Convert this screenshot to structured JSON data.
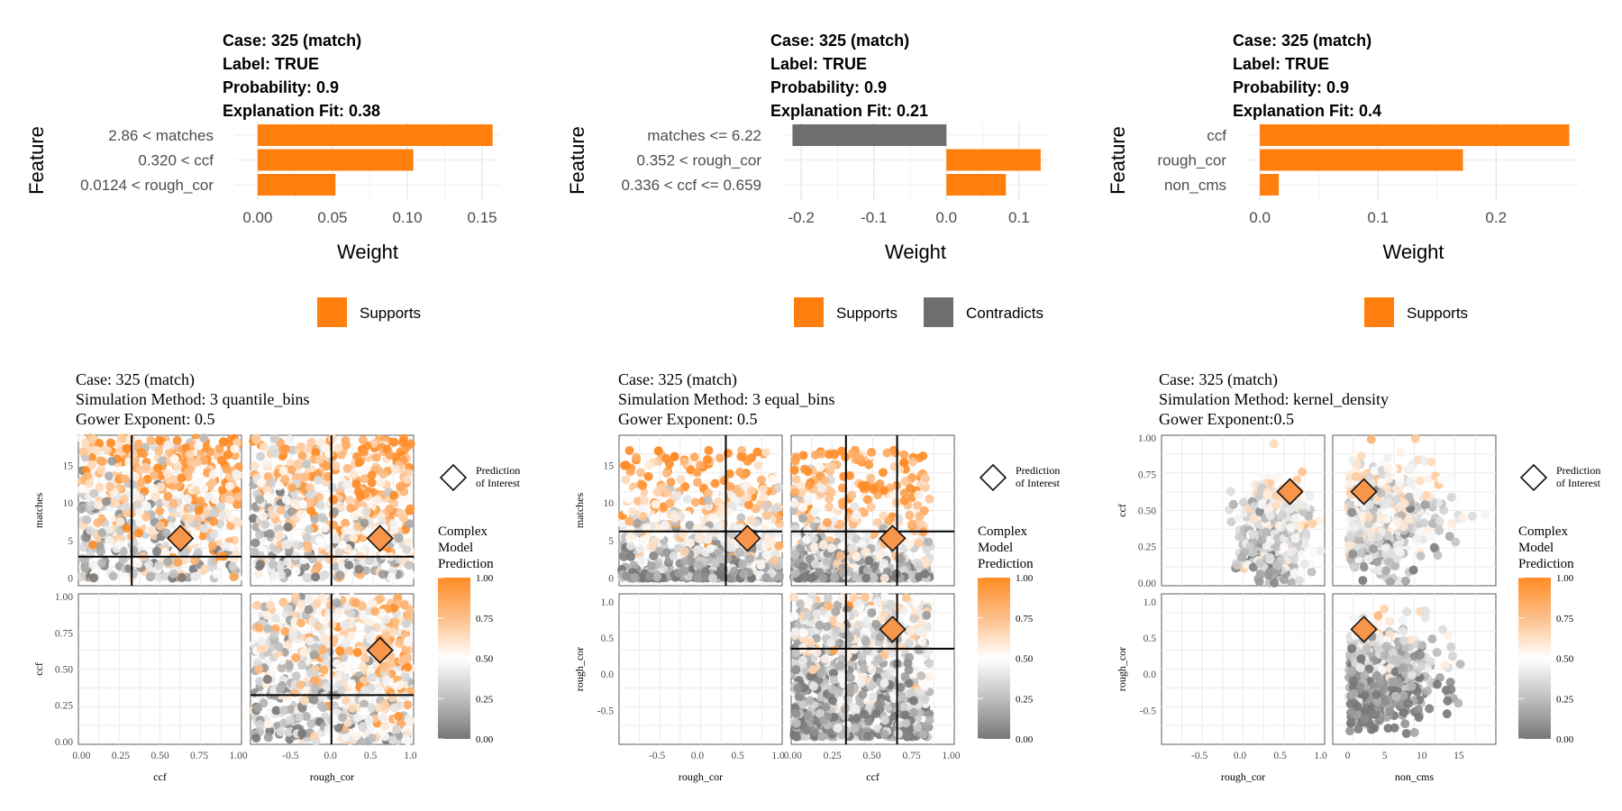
{
  "chart_data": [
    {
      "type": "bar",
      "title": [
        "Case: 325 (match)",
        "Label: TRUE",
        "Probability: 0.9",
        "Explanation Fit: 0.38"
      ],
      "xlabel": "Weight",
      "ylabel": "Feature",
      "xlim": [
        -0.015,
        0.162
      ],
      "xticks": [
        0.0,
        0.05,
        0.1,
        0.15
      ],
      "xtick_labels": [
        "0.00",
        "0.05",
        "0.10",
        "0.15"
      ],
      "categories": [
        "2.86 < matches",
        "0.320 < ccf",
        "0.0124 < rough_cor"
      ],
      "values": [
        0.157,
        0.104,
        0.052
      ],
      "bar_types": [
        "Supports",
        "Supports",
        "Supports"
      ],
      "legend": [
        "Supports"
      ],
      "grid": true,
      "legend_position": "bottom"
    },
    {
      "type": "bar",
      "title": [
        "Case: 325 (match)",
        "Label: TRUE",
        "Probability: 0.9",
        "Explanation Fit: 0.21"
      ],
      "xlabel": "Weight",
      "ylabel": "Feature",
      "xlim": [
        -0.225,
        0.14
      ],
      "xticks": [
        -0.2,
        -0.1,
        0.0,
        0.1
      ],
      "xtick_labels": [
        "-0.2",
        "-0.1",
        "0.0",
        "0.1"
      ],
      "categories": [
        "matches <= 6.22",
        "0.352 < rough_cor",
        "0.336 < ccf <= 0.659"
      ],
      "values": [
        -0.212,
        0.13,
        0.082
      ],
      "bar_types": [
        "Contradicts",
        "Supports",
        "Supports"
      ],
      "legend": [
        "Supports",
        "Contradicts"
      ],
      "grid": true,
      "legend_position": "bottom"
    },
    {
      "type": "bar",
      "title": [
        "Case: 325 (match)",
        "Label: TRUE",
        "Probability: 0.9",
        "Explanation Fit: 0.4"
      ],
      "xlabel": "Weight",
      "ylabel": "Feature",
      "xlim": [
        -0.01,
        0.27
      ],
      "xticks": [
        0.0,
        0.1,
        0.2
      ],
      "xtick_labels": [
        "0.0",
        "0.1",
        "0.2"
      ],
      "categories": [
        "ccf",
        "rough_cor",
        "non_cms"
      ],
      "values": [
        0.262,
        0.172,
        0.016
      ],
      "bar_types": [
        "Supports",
        "Supports",
        "Supports"
      ],
      "legend": [
        "Supports"
      ],
      "grid": true,
      "legend_position": "bottom"
    },
    {
      "type": "scatter",
      "title": [
        "Case: 325 (match)",
        "Simulation Method: 3 quantile_bins",
        "Gower Exponent: 0.5"
      ],
      "layout": "pairs matrix",
      "variables": [
        "ccf",
        "rough_cor"
      ],
      "ylabels": [
        "matches",
        "ccf"
      ],
      "xlabels": [
        "ccf",
        "rough_cor"
      ],
      "color": "Complex Model Prediction",
      "prediction_of_interest": {
        "ccf": 0.63,
        "rough_cor": 0.62,
        "matches": 5.3
      },
      "bin_cuts": {
        "matches": 2.86,
        "ccf": 0.32,
        "rough_cor": 0.0124
      },
      "n_points": 1000,
      "points": "simulated, not readable"
    },
    {
      "type": "scatter",
      "title": [
        "Case: 325 (match)",
        "Simulation Method: 3 equal_bins",
        "Gower Exponent: 0.5"
      ],
      "layout": "pairs matrix",
      "variables": [
        "rough_cor",
        "ccf"
      ],
      "ylabels": [
        "matches",
        "rough_cor"
      ],
      "xlabels": [
        "rough_cor",
        "ccf"
      ],
      "color": "Complex Model Prediction",
      "prediction_of_interest": {
        "rough_cor": 0.62,
        "ccf": 0.63,
        "matches": 5.3
      },
      "bin_cuts": {
        "matches": 6.22,
        "rough_cor": 0.352,
        "ccf": [
          0.336,
          0.659
        ]
      },
      "n_points": 1000,
      "points": "simulated, not readable"
    },
    {
      "type": "scatter",
      "title": [
        "Case: 325 (match)",
        "Simulation Method: kernel_density",
        "Gower Exponent:0.5"
      ],
      "layout": "pairs matrix",
      "variables": [
        "rough_cor",
        "non_cms"
      ],
      "ylabels": [
        "ccf",
        "rough_cor"
      ],
      "xlabels": [
        "rough_cor",
        "non_cms"
      ],
      "color": "Complex Model Prediction",
      "prediction_of_interest": {
        "rough_cor": 0.62,
        "non_cms": 2.2,
        "ccf": 0.63
      },
      "n_points": 800,
      "points": "simulated, not readable"
    }
  ],
  "colors": {
    "supports": "#FF7F0E",
    "contradicts": "#6E6E6E",
    "gradient": [
      "#777777",
      "#bfbfbf",
      "#ffffff",
      "#fdbf8a",
      "#ff8b25"
    ],
    "poi_fill": "#f7954a"
  },
  "legends": {
    "poi_label_1": "Prediction",
    "poi_label_2": "of Interest",
    "color_title": [
      "Complex",
      "Model",
      "Prediction"
    ],
    "color_ticks": [
      "1.00",
      "0.75",
      "0.50",
      "0.25",
      "0.00"
    ]
  },
  "scatter_axes": {
    "matches_ticks": [
      "15",
      "10",
      "5",
      "0"
    ],
    "unit_ticks": [
      "1.00",
      "0.75",
      "0.50",
      "0.25",
      "0.00"
    ],
    "unit_x_ticks": [
      "0.00",
      "0.25",
      "0.50",
      "0.75",
      "1.00"
    ],
    "rough_ticks": [
      "1.0",
      "0.5",
      "0.0",
      "-0.5"
    ],
    "rough_x_ticks": [
      "-0.5",
      "0.0",
      "0.5",
      "1.0"
    ],
    "noncms_x_ticks": [
      "0",
      "5",
      "10",
      "15"
    ]
  }
}
